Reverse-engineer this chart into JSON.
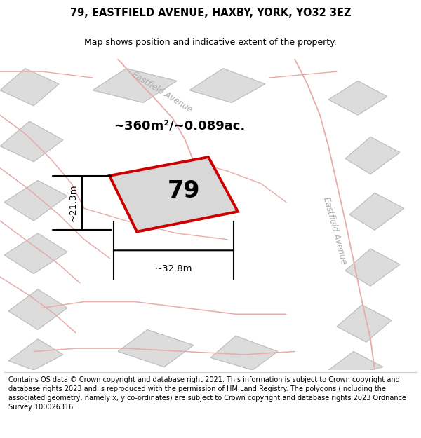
{
  "title": "79, EASTFIELD AVENUE, HAXBY, YORK, YO32 3EZ",
  "subtitle": "Map shows position and indicative extent of the property.",
  "footer": "Contains OS data © Crown copyright and database right 2021. This information is subject to Crown copyright and database rights 2023 and is reproduced with the permission of HM Land Registry. The polygons (including the associated geometry, namely x, y co-ordinates) are subject to Crown copyright and database rights 2023 Ordnance Survey 100026316.",
  "area_label": "~360m²/~0.089ac.",
  "width_label": "~32.8m",
  "height_label": "~21.3m",
  "number_label": "79",
  "bg_color": "#ebebeb",
  "road_pink": "#e8aaaa",
  "road_gray": "#cccccc",
  "parcel_fill": "#dcdcdc",
  "parcel_edge": "#bbbbbb",
  "highlight_color": "#cc0000",
  "highlight_fill": "#d8d8d8",
  "street_color": "#aaaaaa",
  "title_fontsize": 10.5,
  "subtitle_fontsize": 9,
  "footer_fontsize": 7.0,
  "area_fontsize": 13,
  "dim_fontsize": 9.5,
  "number_fontsize": 24
}
